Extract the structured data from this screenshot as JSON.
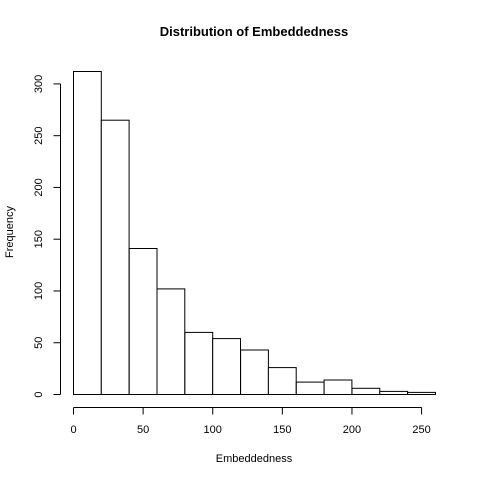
{
  "chart_data": {
    "type": "bar",
    "subtype": "histogram",
    "title": "Distribution of Embeddedness",
    "xlabel": "Embeddedness",
    "ylabel": "Frequency",
    "bin_edges": [
      0,
      20,
      40,
      60,
      80,
      100,
      120,
      140,
      160,
      180,
      200,
      220,
      240,
      260
    ],
    "values": [
      312,
      265,
      141,
      102,
      60,
      54,
      43,
      26,
      12,
      14,
      6,
      3,
      2
    ],
    "xlim": [
      0,
      260
    ],
    "ylim": [
      0,
      312
    ],
    "x_ticks": [
      0,
      50,
      100,
      150,
      200,
      250
    ],
    "y_ticks": [
      0,
      50,
      100,
      150,
      200,
      250,
      300
    ],
    "grid": false,
    "bar_fill": "#ffffff",
    "bar_stroke": "#000000"
  }
}
